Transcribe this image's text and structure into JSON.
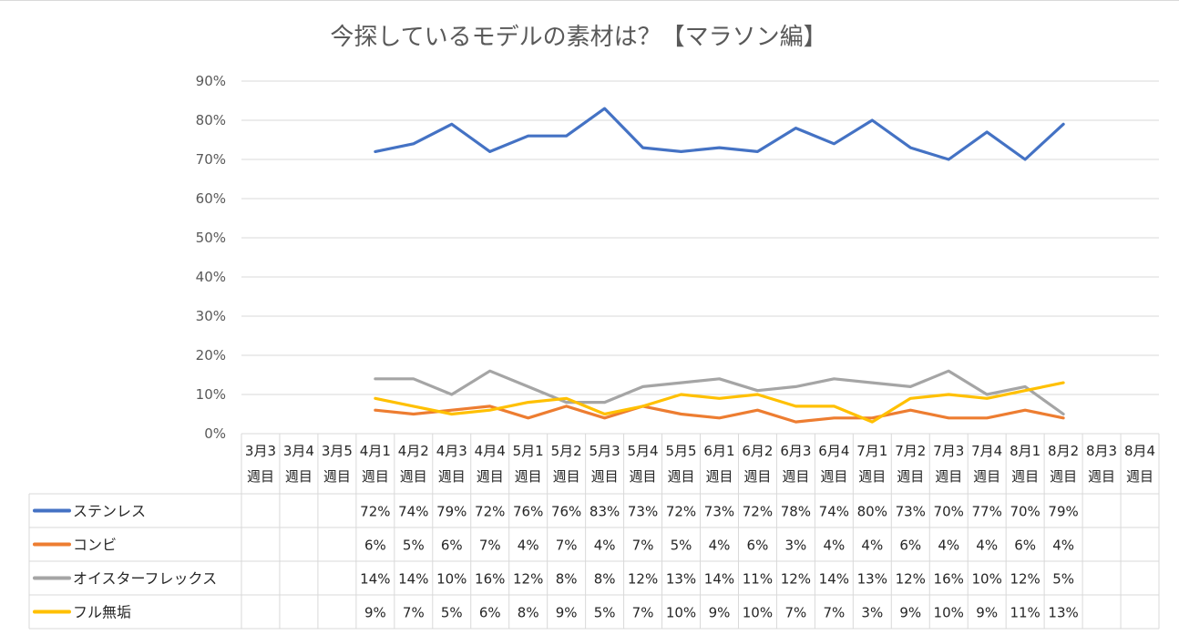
{
  "chart_data": {
    "type": "line",
    "title": "今探しているモデルの素材は？【マラソン編】",
    "ylim": [
      0,
      0.9
    ],
    "yticks": [
      "0%",
      "10%",
      "20%",
      "30%",
      "40%",
      "50%",
      "60%",
      "70%",
      "80%",
      "90%"
    ],
    "grid": true,
    "legend": "data-table",
    "categories": [
      [
        "3月3",
        "週目"
      ],
      [
        "3月4",
        "週目"
      ],
      [
        "3月5",
        "週目"
      ],
      [
        "4月1",
        "週目"
      ],
      [
        "4月2",
        "週目"
      ],
      [
        "4月3",
        "週目"
      ],
      [
        "4月4",
        "週目"
      ],
      [
        "5月1",
        "週目"
      ],
      [
        "5月2",
        "週目"
      ],
      [
        "5月3",
        "週目"
      ],
      [
        "5月4",
        "週目"
      ],
      [
        "5月5",
        "週目"
      ],
      [
        "6月1",
        "週目"
      ],
      [
        "6月2",
        "週目"
      ],
      [
        "6月3",
        "週目"
      ],
      [
        "6月4",
        "週目"
      ],
      [
        "7月1",
        "週目"
      ],
      [
        "7月2",
        "週目"
      ],
      [
        "7月3",
        "週目"
      ],
      [
        "7月4",
        "週目"
      ],
      [
        "8月1",
        "週目"
      ],
      [
        "8月2",
        "週目"
      ],
      [
        "8月3",
        "週目"
      ],
      [
        "8月4",
        "週目"
      ]
    ],
    "series": [
      {
        "name": "ステンレス",
        "color": "#4472c4",
        "values": [
          null,
          null,
          null,
          0.72,
          0.74,
          0.79,
          0.72,
          0.76,
          0.76,
          0.83,
          0.73,
          0.72,
          0.73,
          0.72,
          0.78,
          0.74,
          0.8,
          0.73,
          0.7,
          0.77,
          0.7,
          0.79,
          null,
          null
        ],
        "labels": [
          "",
          "",
          "",
          "72%",
          "74%",
          "79%",
          "72%",
          "76%",
          "76%",
          "83%",
          "73%",
          "72%",
          "73%",
          "72%",
          "78%",
          "74%",
          "80%",
          "73%",
          "70%",
          "77%",
          "70%",
          "79%",
          "",
          ""
        ]
      },
      {
        "name": "コンビ",
        "color": "#ed7d31",
        "values": [
          null,
          null,
          null,
          0.06,
          0.05,
          0.06,
          0.07,
          0.04,
          0.07,
          0.04,
          0.07,
          0.05,
          0.04,
          0.06,
          0.03,
          0.04,
          0.04,
          0.06,
          0.04,
          0.04,
          0.06,
          0.04,
          null,
          null
        ],
        "labels": [
          "",
          "",
          "",
          "6%",
          "5%",
          "6%",
          "7%",
          "4%",
          "7%",
          "4%",
          "7%",
          "5%",
          "4%",
          "6%",
          "3%",
          "4%",
          "4%",
          "6%",
          "4%",
          "4%",
          "6%",
          "4%",
          "",
          ""
        ]
      },
      {
        "name": "オイスターフレックス",
        "color": "#a5a5a5",
        "values": [
          null,
          null,
          null,
          0.14,
          0.14,
          0.1,
          0.16,
          0.12,
          0.08,
          0.08,
          0.12,
          0.13,
          0.14,
          0.11,
          0.12,
          0.14,
          0.13,
          0.12,
          0.16,
          0.1,
          0.12,
          0.05,
          null,
          null
        ],
        "labels": [
          "",
          "",
          "",
          "14%",
          "14%",
          "10%",
          "16%",
          "12%",
          "8%",
          "8%",
          "12%",
          "13%",
          "14%",
          "11%",
          "12%",
          "14%",
          "13%",
          "12%",
          "16%",
          "10%",
          "12%",
          "5%",
          "",
          ""
        ]
      },
      {
        "name": "フル無垢",
        "color": "#ffc000",
        "values": [
          null,
          null,
          null,
          0.09,
          0.07,
          0.05,
          0.06,
          0.08,
          0.09,
          0.05,
          0.07,
          0.1,
          0.09,
          0.1,
          0.07,
          0.07,
          0.03,
          0.09,
          0.1,
          0.09,
          0.11,
          0.13,
          null,
          null
        ],
        "labels": [
          "",
          "",
          "",
          "9%",
          "7%",
          "5%",
          "6%",
          "8%",
          "9%",
          "5%",
          "7%",
          "10%",
          "9%",
          "10%",
          "7%",
          "7%",
          "3%",
          "9%",
          "10%",
          "9%",
          "11%",
          "13%",
          "",
          ""
        ]
      }
    ]
  },
  "colors": {
    "grid": "#d9d9d9",
    "text": "#595959",
    "table_border": "#d9d9d9"
  }
}
